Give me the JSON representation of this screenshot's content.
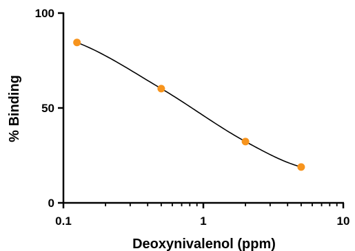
{
  "chart_data": {
    "type": "scatter",
    "title": "",
    "xlabel": "Deoxynivalenol (ppm)",
    "ylabel": "% Binding",
    "x_scale": "log",
    "xlim": [
      0.1,
      10
    ],
    "ylim": [
      0,
      100
    ],
    "x_ticks": [
      0.1,
      1,
      10
    ],
    "x_tick_labels": [
      "0.1",
      "1",
      "10"
    ],
    "y_ticks": [
      0,
      50,
      100
    ],
    "y_tick_labels": [
      "0",
      "50",
      "100"
    ],
    "grid": false,
    "legend": "none",
    "series": [
      {
        "points": [
          {
            "x": 0.125,
            "y": 84.5
          },
          {
            "x": 0.5,
            "y": 60.2
          },
          {
            "x": 2,
            "y": 32.3
          },
          {
            "x": 5,
            "y": 18.9
          }
        ],
        "marker_color": "#F7941D",
        "fit_curve": "sigmoidal",
        "curve_color": "#000000"
      }
    ]
  }
}
